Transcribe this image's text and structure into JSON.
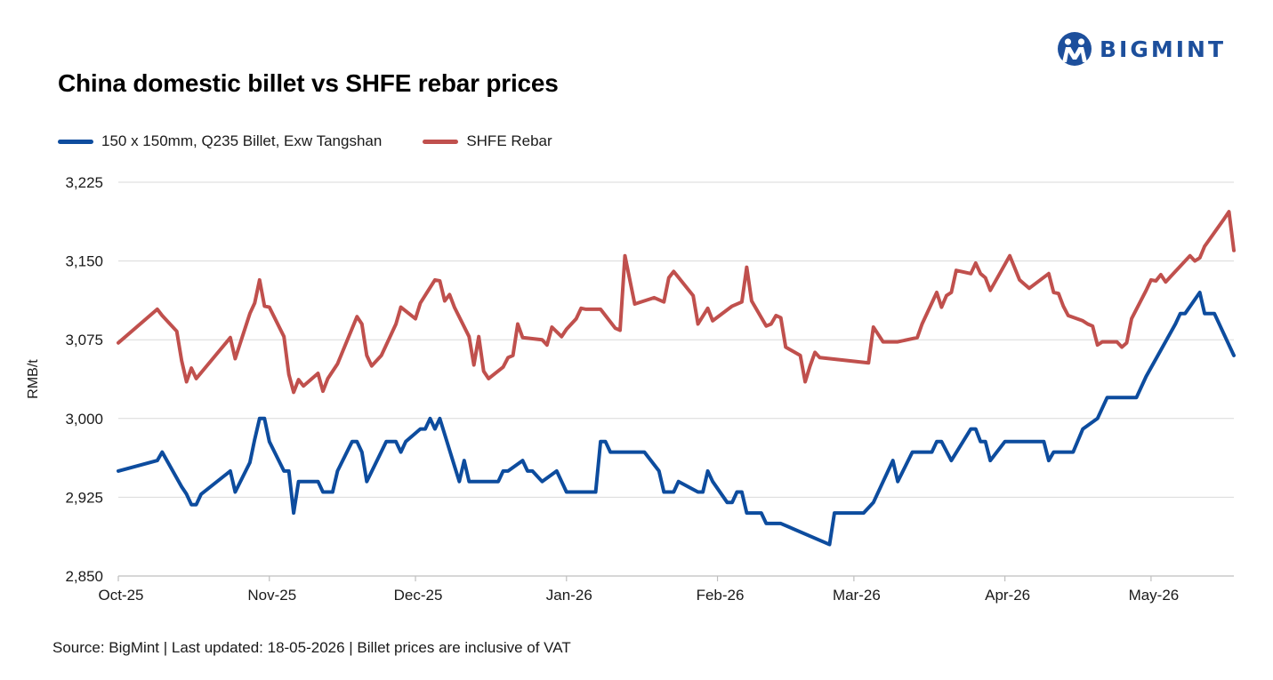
{
  "brand": {
    "logo_text": "BIGMINT"
  },
  "colors": {
    "billet": "#0d4c9e",
    "rebar": "#c0504d",
    "grid": "#d9d9d9",
    "brand": "#1d4f9c"
  },
  "footer": {
    "source": "Source: BigMint | Last updated: 18-05-2026 | Billet prices are inclusive of VAT"
  },
  "chart_data": {
    "type": "line",
    "title": "China domestic billet vs SHFE rebar prices",
    "xlabel": "",
    "ylabel": "RMB/t",
    "ylim": [
      2850,
      3225
    ],
    "yticks": [
      2850,
      2925,
      3000,
      3075,
      3150,
      3225
    ],
    "ytick_labels": [
      "2,850",
      "2,925",
      "3,000",
      "3,075",
      "3,150",
      "3,225"
    ],
    "xlim": [
      "2025-10-01",
      "2026-05-18"
    ],
    "xticks": [
      {
        "date": "2025-10-01",
        "label": "Oct-25"
      },
      {
        "date": "2025-11-01",
        "label": "Nov-25"
      },
      {
        "date": "2025-12-01",
        "label": "Dec-25"
      },
      {
        "date": "2026-01-01",
        "label": "Jan-26"
      },
      {
        "date": "2026-02-01",
        "label": "Feb-26"
      },
      {
        "date": "2026-03-01",
        "label": "Mar-26"
      },
      {
        "date": "2026-04-01",
        "label": "Apr-26"
      },
      {
        "date": "2026-05-01",
        "label": "May-26"
      }
    ],
    "legend": "top-left",
    "grid": true,
    "series": [
      {
        "name": "150 x 150mm, Q235 Billet, Exw Tangshan",
        "points": [
          [
            "2025-10-01",
            2950
          ],
          [
            "2025-10-09",
            2960
          ],
          [
            "2025-10-10",
            2968
          ],
          [
            "2025-10-14",
            2935
          ],
          [
            "2025-10-15",
            2928
          ],
          [
            "2025-10-16",
            2918
          ],
          [
            "2025-10-17",
            2918
          ],
          [
            "2025-10-18",
            2928
          ],
          [
            "2025-10-24",
            2950
          ],
          [
            "2025-10-25",
            2930
          ],
          [
            "2025-10-28",
            2958
          ],
          [
            "2025-10-29",
            2980
          ],
          [
            "2025-10-30",
            3000
          ],
          [
            "2025-10-31",
            3000
          ],
          [
            "2025-11-01",
            2978
          ],
          [
            "2025-11-04",
            2950
          ],
          [
            "2025-11-05",
            2950
          ],
          [
            "2025-11-06",
            2910
          ],
          [
            "2025-11-07",
            2940
          ],
          [
            "2025-11-11",
            2940
          ],
          [
            "2025-11-12",
            2930
          ],
          [
            "2025-11-14",
            2930
          ],
          [
            "2025-11-15",
            2950
          ],
          [
            "2025-11-18",
            2978
          ],
          [
            "2025-11-19",
            2978
          ],
          [
            "2025-11-20",
            2968
          ],
          [
            "2025-11-21",
            2940
          ],
          [
            "2025-11-25",
            2978
          ],
          [
            "2025-11-27",
            2978
          ],
          [
            "2025-11-28",
            2968
          ],
          [
            "2025-11-29",
            2978
          ],
          [
            "2025-12-02",
            2990
          ],
          [
            "2025-12-03",
            2990
          ],
          [
            "2025-12-04",
            3000
          ],
          [
            "2025-12-05",
            2990
          ],
          [
            "2025-12-06",
            3000
          ],
          [
            "2025-12-09",
            2955
          ],
          [
            "2025-12-10",
            2940
          ],
          [
            "2025-12-11",
            2960
          ],
          [
            "2025-12-12",
            2940
          ],
          [
            "2025-12-18",
            2940
          ],
          [
            "2025-12-19",
            2950
          ],
          [
            "2025-12-20",
            2950
          ],
          [
            "2025-12-23",
            2960
          ],
          [
            "2025-12-24",
            2950
          ],
          [
            "2025-12-25",
            2950
          ],
          [
            "2025-12-27",
            2940
          ],
          [
            "2025-12-30",
            2950
          ],
          [
            "2025-12-31",
            2940
          ],
          [
            "2026-01-01",
            2930
          ],
          [
            "2026-01-06",
            2930
          ],
          [
            "2026-01-07",
            2930
          ],
          [
            "2026-01-08",
            2978
          ],
          [
            "2026-01-09",
            2978
          ],
          [
            "2026-01-10",
            2968
          ],
          [
            "2026-01-17",
            2968
          ],
          [
            "2026-01-20",
            2950
          ],
          [
            "2026-01-21",
            2930
          ],
          [
            "2026-01-23",
            2930
          ],
          [
            "2026-01-24",
            2940
          ],
          [
            "2026-01-28",
            2930
          ],
          [
            "2026-01-29",
            2930
          ],
          [
            "2026-01-30",
            2950
          ],
          [
            "2026-01-31",
            2940
          ],
          [
            "2026-02-03",
            2920
          ],
          [
            "2026-02-04",
            2920
          ],
          [
            "2026-02-05",
            2930
          ],
          [
            "2026-02-06",
            2930
          ],
          [
            "2026-02-07",
            2910
          ],
          [
            "2026-02-10",
            2910
          ],
          [
            "2026-02-11",
            2900
          ],
          [
            "2026-02-14",
            2900
          ],
          [
            "2026-02-24",
            2880
          ],
          [
            "2026-02-25",
            2910
          ],
          [
            "2026-03-03",
            2910
          ],
          [
            "2026-03-05",
            2920
          ],
          [
            "2026-03-09",
            2960
          ],
          [
            "2026-03-10",
            2940
          ],
          [
            "2026-03-13",
            2968
          ],
          [
            "2026-03-17",
            2968
          ],
          [
            "2026-03-18",
            2978
          ],
          [
            "2026-03-19",
            2978
          ],
          [
            "2026-03-21",
            2960
          ],
          [
            "2026-03-25",
            2990
          ],
          [
            "2026-03-26",
            2990
          ],
          [
            "2026-03-27",
            2978
          ],
          [
            "2026-03-28",
            2978
          ],
          [
            "2026-03-29",
            2960
          ],
          [
            "2026-04-01",
            2978
          ],
          [
            "2026-04-09",
            2978
          ],
          [
            "2026-04-10",
            2960
          ],
          [
            "2026-04-11",
            2968
          ],
          [
            "2026-04-15",
            2968
          ],
          [
            "2026-04-17",
            2990
          ],
          [
            "2026-04-20",
            3000
          ],
          [
            "2026-04-22",
            3020
          ],
          [
            "2026-04-28",
            3020
          ],
          [
            "2026-04-30",
            3040
          ],
          [
            "2026-05-06",
            3090
          ],
          [
            "2026-05-07",
            3100
          ],
          [
            "2026-05-08",
            3100
          ],
          [
            "2026-05-11",
            3120
          ],
          [
            "2026-05-12",
            3100
          ],
          [
            "2026-05-14",
            3100
          ],
          [
            "2026-05-18",
            3060
          ]
        ]
      },
      {
        "name": "SHFE Rebar",
        "points": [
          [
            "2025-10-01",
            3072
          ],
          [
            "2025-10-09",
            3104
          ],
          [
            "2025-10-10",
            3098
          ],
          [
            "2025-10-13",
            3083
          ],
          [
            "2025-10-14",
            3055
          ],
          [
            "2025-10-15",
            3035
          ],
          [
            "2025-10-16",
            3048
          ],
          [
            "2025-10-17",
            3038
          ],
          [
            "2025-10-24",
            3077
          ],
          [
            "2025-10-25",
            3057
          ],
          [
            "2025-10-28",
            3100
          ],
          [
            "2025-10-29",
            3110
          ],
          [
            "2025-10-30",
            3132
          ],
          [
            "2025-10-31",
            3107
          ],
          [
            "2025-11-01",
            3106
          ],
          [
            "2025-11-04",
            3078
          ],
          [
            "2025-11-05",
            3042
          ],
          [
            "2025-11-06",
            3025
          ],
          [
            "2025-11-07",
            3037
          ],
          [
            "2025-11-08",
            3031
          ],
          [
            "2025-11-11",
            3043
          ],
          [
            "2025-11-12",
            3026
          ],
          [
            "2025-11-13",
            3038
          ],
          [
            "2025-11-15",
            3052
          ],
          [
            "2025-11-19",
            3097
          ],
          [
            "2025-11-20",
            3090
          ],
          [
            "2025-11-21",
            3060
          ],
          [
            "2025-11-22",
            3050
          ],
          [
            "2025-11-24",
            3060
          ],
          [
            "2025-11-27",
            3090
          ],
          [
            "2025-11-28",
            3106
          ],
          [
            "2025-12-01",
            3095
          ],
          [
            "2025-12-02",
            3110
          ],
          [
            "2025-12-05",
            3132
          ],
          [
            "2025-12-06",
            3131
          ],
          [
            "2025-12-07",
            3112
          ],
          [
            "2025-12-08",
            3118
          ],
          [
            "2025-12-09",
            3106
          ],
          [
            "2025-12-12",
            3078
          ],
          [
            "2025-12-13",
            3051
          ],
          [
            "2025-12-14",
            3078
          ],
          [
            "2025-12-15",
            3045
          ],
          [
            "2025-12-16",
            3038
          ],
          [
            "2025-12-19",
            3049
          ],
          [
            "2025-12-20",
            3058
          ],
          [
            "2025-12-21",
            3060
          ],
          [
            "2025-12-22",
            3090
          ],
          [
            "2025-12-23",
            3077
          ],
          [
            "2025-12-27",
            3075
          ],
          [
            "2025-12-28",
            3070
          ],
          [
            "2025-12-29",
            3087
          ],
          [
            "2025-12-31",
            3078
          ],
          [
            "2026-01-01",
            3085
          ],
          [
            "2026-01-03",
            3095
          ],
          [
            "2026-01-04",
            3105
          ],
          [
            "2026-01-05",
            3104
          ],
          [
            "2026-01-08",
            3104
          ],
          [
            "2026-01-11",
            3086
          ],
          [
            "2026-01-12",
            3084
          ],
          [
            "2026-01-13",
            3155
          ],
          [
            "2026-01-15",
            3109
          ],
          [
            "2026-01-19",
            3115
          ],
          [
            "2026-01-21",
            3111
          ],
          [
            "2026-01-22",
            3134
          ],
          [
            "2026-01-23",
            3140
          ],
          [
            "2026-01-27",
            3117
          ],
          [
            "2026-01-28",
            3090
          ],
          [
            "2026-01-30",
            3105
          ],
          [
            "2026-01-31",
            3093
          ],
          [
            "2026-02-04",
            3107
          ],
          [
            "2026-02-06",
            3111
          ],
          [
            "2026-02-07",
            3144
          ],
          [
            "2026-02-08",
            3112
          ],
          [
            "2026-02-11",
            3088
          ],
          [
            "2026-02-12",
            3090
          ],
          [
            "2026-02-13",
            3098
          ],
          [
            "2026-02-14",
            3096
          ],
          [
            "2026-02-15",
            3068
          ],
          [
            "2026-02-18",
            3060
          ],
          [
            "2026-02-19",
            3035
          ],
          [
            "2026-02-20",
            3050
          ],
          [
            "2026-02-21",
            3063
          ],
          [
            "2026-02-22",
            3058
          ],
          [
            "2026-03-04",
            3053
          ],
          [
            "2026-03-05",
            3087
          ],
          [
            "2026-03-06",
            3080
          ],
          [
            "2026-03-07",
            3073
          ],
          [
            "2026-03-10",
            3073
          ],
          [
            "2026-03-12",
            3075
          ],
          [
            "2026-03-14",
            3077
          ],
          [
            "2026-03-15",
            3090
          ],
          [
            "2026-03-18",
            3120
          ],
          [
            "2026-03-19",
            3106
          ],
          [
            "2026-03-20",
            3117
          ],
          [
            "2026-03-21",
            3120
          ],
          [
            "2026-03-22",
            3141
          ],
          [
            "2026-03-25",
            3138
          ],
          [
            "2026-03-26",
            3148
          ],
          [
            "2026-03-27",
            3138
          ],
          [
            "2026-03-28",
            3134
          ],
          [
            "2026-03-29",
            3122
          ],
          [
            "2026-04-02",
            3155
          ],
          [
            "2026-04-04",
            3132
          ],
          [
            "2026-04-05",
            3128
          ],
          [
            "2026-04-06",
            3124
          ],
          [
            "2026-04-10",
            3138
          ],
          [
            "2026-04-11",
            3120
          ],
          [
            "2026-04-12",
            3119
          ],
          [
            "2026-04-13",
            3107
          ],
          [
            "2026-04-14",
            3098
          ],
          [
            "2026-04-17",
            3093
          ],
          [
            "2026-04-18",
            3090
          ],
          [
            "2026-04-19",
            3088
          ],
          [
            "2026-04-20",
            3070
          ],
          [
            "2026-04-21",
            3073
          ],
          [
            "2026-04-24",
            3073
          ],
          [
            "2026-04-25",
            3068
          ],
          [
            "2026-04-26",
            3072
          ],
          [
            "2026-04-27",
            3095
          ],
          [
            "2026-04-30",
            3122
          ],
          [
            "2026-05-01",
            3132
          ],
          [
            "2026-05-02",
            3131
          ],
          [
            "2026-05-03",
            3137
          ],
          [
            "2026-05-04",
            3130
          ],
          [
            "2026-05-05",
            3135
          ],
          [
            "2026-05-09",
            3155
          ],
          [
            "2026-05-10",
            3150
          ],
          [
            "2026-05-11",
            3153
          ],
          [
            "2026-05-12",
            3164
          ],
          [
            "2026-05-16",
            3190
          ],
          [
            "2026-05-17",
            3197
          ],
          [
            "2026-05-18",
            3160
          ]
        ]
      }
    ]
  }
}
